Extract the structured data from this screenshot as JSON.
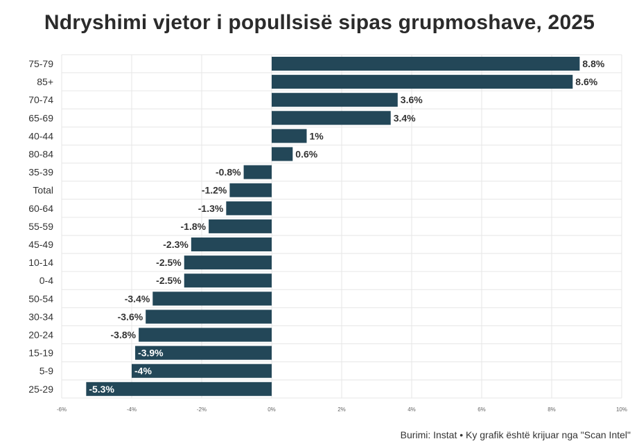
{
  "title": "Ndryshimi vjetor i popullsisë sipas grupmoshave, 2025",
  "source": "Burimi: Instat • Ky grafik është krijuar nga \"Scan Intel\"",
  "colors": {
    "bar": "#234758",
    "label_dark": "#333333",
    "label_light": "#ffffff",
    "grid": "#e6e6e6"
  },
  "chart_data": {
    "type": "bar",
    "orientation": "horizontal",
    "categories": [
      "75-79",
      "85+",
      "70-74",
      "65-69",
      "40-44",
      "80-84",
      "35-39",
      "Total",
      "60-64",
      "55-59",
      "45-49",
      "10-14",
      "0-4",
      "50-54",
      "30-34",
      "20-24",
      "15-19",
      "5-9",
      "25-29"
    ],
    "values": [
      8.8,
      8.6,
      3.6,
      3.4,
      1,
      0.6,
      -0.8,
      -1.2,
      -1.3,
      -1.8,
      -2.3,
      -2.5,
      -2.5,
      -3.4,
      -3.6,
      -3.8,
      -3.9,
      -4,
      -5.3
    ],
    "data_labels": [
      "8.8%",
      "8.6%",
      "3.6%",
      "3.4%",
      "1%",
      "0.6%",
      "-0.8%",
      "-1.2%",
      "-1.3%",
      "-1.8%",
      "-2.3%",
      "-2.5%",
      "-2.5%",
      "-3.4%",
      "-3.6%",
      "-3.8%",
      "-3.9%",
      "-4%",
      "-5.3%"
    ],
    "xlim": [
      -6,
      10
    ],
    "xticks": [
      -6,
      -4,
      -2,
      0,
      2,
      4,
      6,
      8,
      10
    ],
    "xtick_labels": [
      "-6%",
      "-4%",
      "-2%",
      "0%",
      "2%",
      "4%",
      "6%",
      "8%",
      "10%"
    ],
    "grid": true,
    "legend": "none"
  }
}
